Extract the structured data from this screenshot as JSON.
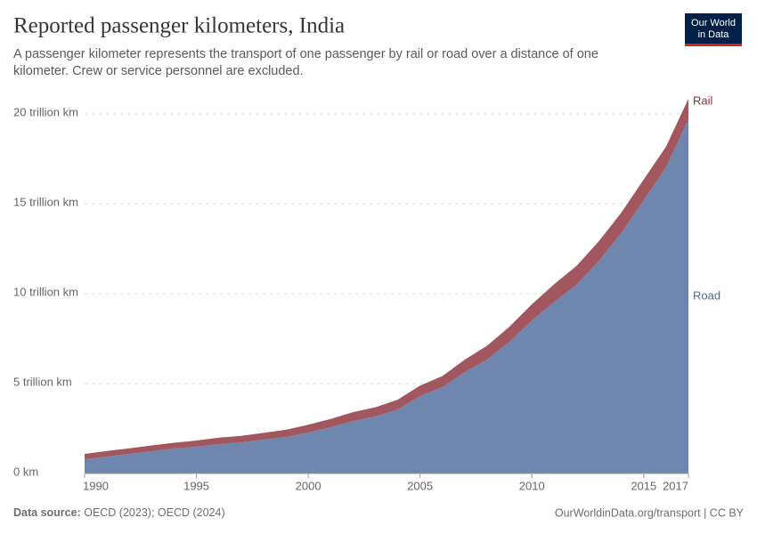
{
  "chart_data": {
    "type": "stacked-area",
    "title": "Reported passenger kilometers, India",
    "subtitle_lines": [
      "A passenger kilometer represents the transport of one passenger by rail or road over a distance of one",
      "kilometer. Crew or service personnel are excluded."
    ],
    "logo_lines": [
      "Our World",
      "in Data"
    ],
    "source_label": "Data source:",
    "source": "OECD (2023); OECD (2024)",
    "footer_right": "OurWorldinData.org/transport | CC BY",
    "x": [
      1990,
      1991,
      1992,
      1993,
      1994,
      1995,
      1996,
      1997,
      1998,
      1999,
      2000,
      2001,
      2002,
      2003,
      2004,
      2005,
      2006,
      2007,
      2008,
      2009,
      2010,
      2011,
      2012,
      2013,
      2014,
      2015,
      2016,
      2017
    ],
    "series": [
      {
        "name": "Road",
        "color": "#6f87af",
        "label_color": "#4c6a9c",
        "values": [
          0.79,
          0.94,
          1.09,
          1.24,
          1.39,
          1.49,
          1.63,
          1.73,
          1.88,
          2.03,
          2.28,
          2.57,
          2.92,
          3.17,
          3.56,
          4.31,
          4.8,
          5.64,
          6.34,
          7.33,
          8.51,
          9.55,
          10.5,
          11.83,
          13.37,
          15.2,
          17.03,
          19.7
        ]
      },
      {
        "name": "Rail",
        "color": "#a2565e",
        "label_color": "#883039",
        "values": [
          0.3,
          0.31,
          0.31,
          0.32,
          0.32,
          0.34,
          0.36,
          0.36,
          0.38,
          0.4,
          0.43,
          0.46,
          0.49,
          0.51,
          0.54,
          0.58,
          0.62,
          0.69,
          0.77,
          0.84,
          0.9,
          0.98,
          1.05,
          1.1,
          1.14,
          1.15,
          1.15,
          1.15
        ]
      }
    ],
    "xlim": [
      1990,
      2017
    ],
    "xticks": [
      1990,
      1995,
      2000,
      2005,
      2010,
      2015,
      2017
    ],
    "ylim": [
      0,
      21
    ],
    "yticks": [
      {
        "value": 0,
        "label": "0 km"
      },
      {
        "value": 5,
        "label": "5 trillion km"
      },
      {
        "value": 10,
        "label": "10 trillion km"
      },
      {
        "value": 15,
        "label": "15 trillion km"
      },
      {
        "value": 20,
        "label": "20 trillion km"
      }
    ],
    "grid": true
  }
}
